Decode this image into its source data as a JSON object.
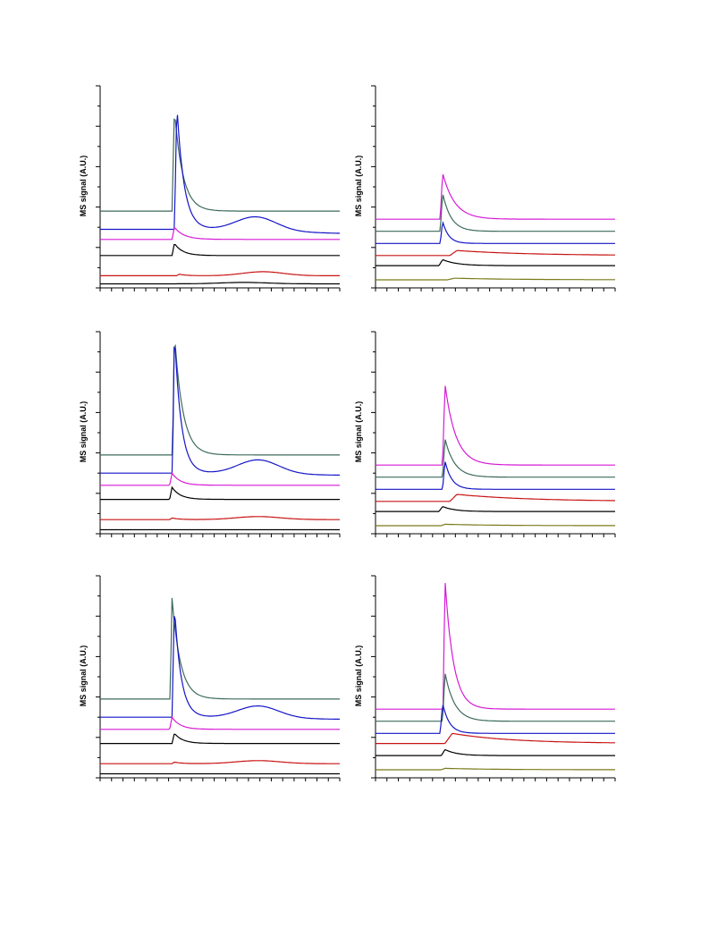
{
  "page": {
    "background": "#ffffff"
  },
  "colors": {
    "teal": "#3d6b5a",
    "blue": "#1515c8",
    "magenta": "#d61bd6",
    "black": "#000000",
    "red": "#c81414",
    "olive": "#7a7a1a"
  },
  "chart_data": [
    {
      "type": "line",
      "ylabel": "MS signal (A.U.)",
      "xlabel": "",
      "x_ticks": 21,
      "y_ticks": 10,
      "grid": false,
      "ylim": [
        0,
        100
      ],
      "xlim": [
        0,
        100
      ],
      "series": [
        {
          "color": "teal",
          "base": 38,
          "peak": {
            "x": 31,
            "h": 50,
            "rise": 1.0,
            "decay": 3.5
          }
        },
        {
          "color": "blue",
          "base": 29,
          "peak": {
            "x": 32,
            "h": 62,
            "rise": 1.0,
            "decay": 3.0
          },
          "hump": {
            "x": 65,
            "h": 7,
            "w": 12
          },
          "tail": -2
        },
        {
          "color": "magenta",
          "base": 24,
          "peak": {
            "x": 31,
            "h": 6,
            "rise": 1.0,
            "decay": 4
          }
        },
        {
          "color": "black",
          "base": 16,
          "peak": {
            "x": 31,
            "h": 6,
            "rise": 1.0,
            "decay": 3.5
          }
        },
        {
          "color": "red",
          "base": 6,
          "peak": {
            "x": 33,
            "h": 0.8,
            "rise": 1,
            "decay": 3
          },
          "hump": {
            "x": 68,
            "h": 2,
            "w": 12
          }
        },
        {
          "color": "black",
          "base": 2,
          "hump": {
            "x": 60,
            "h": 0.7,
            "w": 14
          }
        }
      ]
    },
    {
      "type": "line",
      "ylabel": "MS signal (A.U.)",
      "xlabel": "",
      "x_ticks": 21,
      "y_ticks": 10,
      "grid": false,
      "ylim": [
        0,
        100
      ],
      "xlim": [
        0,
        100
      ],
      "series": [
        {
          "color": "magenta",
          "base": 34,
          "peak": {
            "x": 28,
            "h": 23,
            "rise": 1.0,
            "decay": 5
          }
        },
        {
          "color": "teal",
          "base": 28,
          "peak": {
            "x": 28,
            "h": 19,
            "rise": 1.0,
            "decay": 3.5
          }
        },
        {
          "color": "blue",
          "base": 22,
          "peak": {
            "x": 28,
            "h": 11,
            "rise": 1.0,
            "decay": 2.5
          }
        },
        {
          "color": "red",
          "base": 16,
          "peak": {
            "x": 34,
            "h": 2.5,
            "rise": 3,
            "decay": 30
          }
        },
        {
          "color": "black",
          "base": 11,
          "peak": {
            "x": 28,
            "h": 3,
            "rise": 1.5,
            "decay": 6
          }
        },
        {
          "color": "olive",
          "base": 4,
          "peak": {
            "x": 33,
            "h": 0.8,
            "rise": 3,
            "decay": 25
          }
        }
      ]
    },
    {
      "type": "line",
      "ylabel": "MS signal (A.U.)",
      "xlabel": "",
      "x_ticks": 21,
      "y_ticks": 10,
      "grid": false,
      "ylim": [
        0,
        100
      ],
      "xlim": [
        0,
        100
      ],
      "series": [
        {
          "color": "teal",
          "base": 39,
          "peak": {
            "x": 31,
            "h": 60,
            "rise": 0.8,
            "decay": 3.5
          }
        },
        {
          "color": "blue",
          "base": 30,
          "peak": {
            "x": 31,
            "h": 70,
            "rise": 0.8,
            "decay": 2.8
          },
          "hump": {
            "x": 66,
            "h": 7,
            "w": 12
          },
          "tail": -1
        },
        {
          "color": "magenta",
          "base": 24,
          "peak": {
            "x": 30,
            "h": 6,
            "rise": 1.0,
            "decay": 3.5
          }
        },
        {
          "color": "black",
          "base": 17,
          "peak": {
            "x": 30,
            "h": 6,
            "rise": 1.0,
            "decay": 3.5
          }
        },
        {
          "color": "red",
          "base": 7,
          "peak": {
            "x": 30,
            "h": 0.8,
            "rise": 1,
            "decay": 3
          },
          "hump": {
            "x": 66,
            "h": 1.5,
            "w": 13
          }
        },
        {
          "color": "black",
          "base": 2
        }
      ]
    },
    {
      "type": "line",
      "ylabel": "MS signal (A.U.)",
      "xlabel": "",
      "x_ticks": 21,
      "y_ticks": 10,
      "grid": false,
      "ylim": [
        0,
        100
      ],
      "xlim": [
        0,
        100
      ],
      "series": [
        {
          "color": "magenta",
          "base": 34,
          "peak": {
            "x": 29,
            "h": 40,
            "rise": 1.0,
            "decay": 4.5
          }
        },
        {
          "color": "teal",
          "base": 28,
          "peak": {
            "x": 29,
            "h": 19,
            "rise": 1.0,
            "decay": 4
          }
        },
        {
          "color": "blue",
          "base": 22,
          "peak": {
            "x": 29,
            "h": 14,
            "rise": 1.0,
            "decay": 2.8
          }
        },
        {
          "color": "red",
          "base": 16,
          "peak": {
            "x": 34,
            "h": 3.5,
            "rise": 3,
            "decay": 30
          }
        },
        {
          "color": "black",
          "base": 11,
          "peak": {
            "x": 28,
            "h": 2.5,
            "rise": 1.5,
            "decay": 5
          }
        },
        {
          "color": "olive",
          "base": 4,
          "peak": {
            "x": 29,
            "h": 0.7,
            "rise": 1.5,
            "decay": 20
          }
        }
      ]
    },
    {
      "type": "line",
      "ylabel": "MS signal (A.U.)",
      "xlabel": "",
      "x_ticks": 21,
      "y_ticks": 10,
      "grid": false,
      "ylim": [
        0,
        100
      ],
      "xlim": [
        0,
        100
      ],
      "series": [
        {
          "color": "teal",
          "base": 39,
          "peak": {
            "x": 30,
            "h": 50,
            "rise": 0.8,
            "decay": 3.5
          }
        },
        {
          "color": "blue",
          "base": 30,
          "peak": {
            "x": 31,
            "h": 55,
            "rise": 1.0,
            "decay": 2.8
          },
          "hump": {
            "x": 66,
            "h": 6,
            "w": 12
          },
          "tail": -1
        },
        {
          "color": "magenta",
          "base": 24,
          "peak": {
            "x": 30,
            "h": 6,
            "rise": 1.0,
            "decay": 3.5
          }
        },
        {
          "color": "black",
          "base": 17,
          "peak": {
            "x": 31,
            "h": 5,
            "rise": 1.0,
            "decay": 3.5
          }
        },
        {
          "color": "red",
          "base": 7,
          "peak": {
            "x": 31,
            "h": 0.8,
            "rise": 1,
            "decay": 3
          },
          "hump": {
            "x": 66,
            "h": 1.5,
            "w": 13
          }
        },
        {
          "color": "black",
          "base": 2
        }
      ]
    },
    {
      "type": "line",
      "ylabel": "MS signal (A.U.)",
      "xlabel": "",
      "x_ticks": 21,
      "y_ticks": 10,
      "grid": false,
      "ylim": [
        0,
        100
      ],
      "xlim": [
        0,
        100
      ],
      "series": [
        {
          "color": "magenta",
          "base": 34,
          "peak": {
            "x": 29,
            "h": 64,
            "rise": 0.8,
            "decay": 3.5
          }
        },
        {
          "color": "teal",
          "base": 28,
          "peak": {
            "x": 29,
            "h": 24,
            "rise": 1.0,
            "decay": 4
          }
        },
        {
          "color": "blue",
          "base": 22,
          "peak": {
            "x": 28,
            "h": 15,
            "rise": 1.0,
            "decay": 2.8
          }
        },
        {
          "color": "red",
          "base": 17,
          "peak": {
            "x": 32,
            "h": 5,
            "rise": 3,
            "decay": 25
          }
        },
        {
          "color": "black",
          "base": 11,
          "peak": {
            "x": 29,
            "h": 3,
            "rise": 1.5,
            "decay": 5
          }
        },
        {
          "color": "olive",
          "base": 4,
          "peak": {
            "x": 29,
            "h": 0.7,
            "rise": 1.5,
            "decay": 20
          }
        }
      ]
    }
  ]
}
